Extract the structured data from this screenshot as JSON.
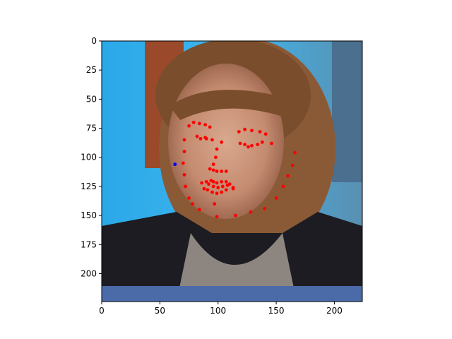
{
  "chart_data": {
    "type": "scatter",
    "title": "",
    "xlabel": "",
    "ylabel": "",
    "background": "photo of a woman's face (news broadcast frame)",
    "xlim": [
      0,
      224
    ],
    "ylim": [
      224,
      0
    ],
    "x_ticks": [
      0,
      50,
      100,
      150,
      200
    ],
    "y_ticks": [
      0,
      25,
      50,
      75,
      100,
      125,
      150,
      175,
      200
    ],
    "grid": false,
    "legend": "none",
    "series": [
      {
        "color": "#ff0000",
        "points": [
          [
            75,
            73
          ],
          [
            79,
            70
          ],
          [
            84,
            71
          ],
          [
            89,
            72
          ],
          [
            93,
            74
          ],
          [
            71,
            85
          ],
          [
            71,
            95
          ],
          [
            70,
            105
          ],
          [
            71,
            115
          ],
          [
            72,
            125
          ],
          [
            75,
            135
          ],
          [
            78,
            140
          ],
          [
            84,
            145
          ],
          [
            118,
            78
          ],
          [
            123,
            76
          ],
          [
            129,
            77
          ],
          [
            136,
            78
          ],
          [
            141,
            80
          ],
          [
            82,
            82
          ],
          [
            85,
            84
          ],
          [
            89,
            83
          ],
          [
            90,
            84
          ],
          [
            95,
            85
          ],
          [
            119,
            88
          ],
          [
            123,
            89
          ],
          [
            126,
            91
          ],
          [
            129,
            90
          ],
          [
            134,
            89
          ],
          [
            138,
            87
          ],
          [
            146,
            88
          ],
          [
            103,
            87
          ],
          [
            99,
            93
          ],
          [
            98,
            100
          ],
          [
            96,
            106
          ],
          [
            93,
            110
          ],
          [
            96,
            111
          ],
          [
            99,
            112
          ],
          [
            103,
            112
          ],
          [
            107,
            112
          ],
          [
            86,
            122
          ],
          [
            88,
            127
          ],
          [
            91,
            128
          ],
          [
            95,
            130
          ],
          [
            99,
            131
          ],
          [
            103,
            130
          ],
          [
            107,
            128
          ],
          [
            113,
            127
          ],
          [
            90,
            121
          ],
          [
            94,
            120
          ],
          [
            96,
            121
          ],
          [
            99,
            122
          ],
          [
            103,
            121
          ],
          [
            107,
            121
          ],
          [
            110,
            123
          ],
          [
            92,
            123
          ],
          [
            96,
            125
          ],
          [
            100,
            126
          ],
          [
            104,
            125
          ],
          [
            108,
            124
          ],
          [
            113,
            126
          ],
          [
            97,
            140
          ],
          [
            99,
            151
          ],
          [
            115,
            150
          ],
          [
            128,
            147
          ],
          [
            140,
            144
          ],
          [
            150,
            135
          ],
          [
            156,
            125
          ],
          [
            160,
            116
          ],
          [
            164,
            107
          ],
          [
            166,
            96
          ]
        ]
      },
      {
        "color": "#0000ff",
        "points": [
          [
            63,
            106
          ]
        ]
      }
    ]
  }
}
